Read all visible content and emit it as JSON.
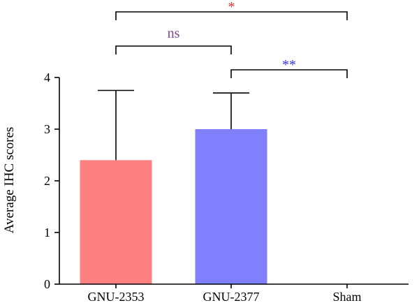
{
  "chart_data": {
    "type": "bar",
    "title": "",
    "xlabel": "",
    "ylabel": "Average IHC scores",
    "ylim": [
      0,
      4
    ],
    "yticks": [
      0,
      1,
      2,
      3,
      4
    ],
    "categories": [
      "GNU-2353",
      "GNU-2377",
      "Sham"
    ],
    "values": [
      2.4,
      3.0,
      0
    ],
    "error_upper": [
      3.75,
      3.7,
      null
    ],
    "bar_colors": [
      "#FF8080",
      "#8080FF",
      null
    ],
    "grid": false,
    "significance": [
      {
        "from": 0,
        "to": 2,
        "label": "*",
        "color": "#E03030",
        "level": 1
      },
      {
        "from": 0,
        "to": 1,
        "label": "ns",
        "color": "#7B4A8E",
        "level": 0
      },
      {
        "from": 1,
        "to": 2,
        "label": "**",
        "color": "#3030E0",
        "level": -1
      }
    ]
  }
}
